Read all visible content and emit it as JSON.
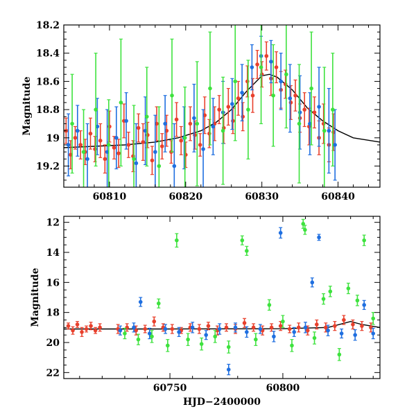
{
  "chart_data": [
    {
      "type": "scatter",
      "title": "",
      "xlabel": "",
      "ylabel": "Magnitude",
      "xlim": [
        60804,
        60845.5
      ],
      "ylim": [
        19.35,
        18.2
      ],
      "y_inverted": true,
      "grid": false,
      "legend": "none",
      "xticks": [
        60810,
        60820,
        60830,
        60840
      ],
      "yticks": [
        18.2,
        18.4,
        18.6,
        18.8,
        19,
        19.2
      ],
      "ytick_labels": [
        "18.2",
        "18.4",
        "18.6",
        "18.8",
        "19",
        "19.2"
      ],
      "model_curve": {
        "color": "#000000",
        "x": [
          60804,
          60808,
          60812,
          60816,
          60819,
          60822,
          60824,
          60826,
          60828,
          60830,
          60831,
          60832,
          60834,
          60836,
          60838,
          60840,
          60842,
          60845.5
        ],
        "y": [
          19.07,
          19.06,
          19.05,
          19.03,
          19.0,
          18.95,
          18.89,
          18.8,
          18.67,
          18.56,
          18.55,
          18.57,
          18.66,
          18.79,
          18.88,
          18.95,
          19.0,
          19.03
        ]
      },
      "series": [
        {
          "color": "#e8402c",
          "x": [
            60804.3,
            60804.9,
            60805.5,
            60806.2,
            60806.8,
            60807.5,
            60808.1,
            60808.8,
            60809.4,
            60810.0,
            60810.6,
            60811.2,
            60811.9,
            60812.5,
            60813.1,
            60813.8,
            60814.4,
            60815.0,
            60815.6,
            60816.2,
            60816.9,
            60817.5,
            60818.1,
            60818.8,
            60819.4,
            60820.0,
            60820.6,
            60821.2,
            60821.9,
            60822.5,
            60823.1,
            60823.8,
            60824.4,
            60825.0,
            60825.6,
            60826.2,
            60826.9,
            60827.5,
            60828.1,
            60828.8,
            60829.4,
            60830.0,
            60830.6,
            60831.2,
            60831.9,
            60832.5,
            60833.1,
            60833.8,
            60834.4,
            60835.0,
            60835.6,
            60836.2,
            60836.9,
            60837.5,
            60838.1,
            60838.8,
            60839.4
          ],
          "y": [
            18.95,
            19.12,
            19.0,
            19.05,
            19.1,
            18.97,
            19.08,
            19.02,
            19.15,
            18.92,
            19.07,
            19.11,
            18.88,
            19.05,
            19.13,
            18.93,
            19.03,
            18.98,
            19.16,
            18.9,
            19.06,
            18.95,
            19.1,
            18.87,
            19.02,
            19.12,
            18.9,
            18.98,
            19.05,
            18.84,
            18.97,
            18.9,
            18.8,
            18.93,
            18.78,
            18.88,
            18.72,
            18.85,
            18.6,
            18.7,
            18.48,
            18.55,
            18.42,
            18.58,
            18.5,
            18.66,
            18.62,
            18.75,
            18.7,
            18.86,
            18.8,
            18.92,
            18.82,
            19.0,
            18.9,
            19.05,
            18.96
          ],
          "err": [
            0.09,
            0.1,
            0.08,
            0.1,
            0.09,
            0.11,
            0.09,
            0.12,
            0.1,
            0.11,
            0.08,
            0.1,
            0.12,
            0.09,
            0.11,
            0.1,
            0.13,
            0.09,
            0.1,
            0.12,
            0.09,
            0.11,
            0.08,
            0.12,
            0.1,
            0.09,
            0.12,
            0.1,
            0.08,
            0.13,
            0.1,
            0.12,
            0.1,
            0.11,
            0.13,
            0.09,
            0.12,
            0.1,
            0.11,
            0.12,
            0.1,
            0.09,
            0.1,
            0.12,
            0.11,
            0.13,
            0.1,
            0.12,
            0.11,
            0.1,
            0.12,
            0.13,
            0.11,
            0.12,
            0.14,
            0.12,
            0.13
          ]
        },
        {
          "color": "#1f6fe0",
          "x": [
            60804.6,
            60805.8,
            60807.1,
            60808.4,
            60809.7,
            60810.9,
            60812.2,
            60813.5,
            60814.7,
            60816.0,
            60817.3,
            60818.5,
            60819.8,
            60821.1,
            60822.3,
            60823.6,
            60824.9,
            60826.1,
            60827.4,
            60828.7,
            60829.9,
            60831.2,
            60832.5,
            60833.7,
            60835.0,
            60836.3,
            60837.5,
            60838.8,
            60839.6
          ],
          "y": [
            19.05,
            18.95,
            19.15,
            18.92,
            19.1,
            19.0,
            18.88,
            19.18,
            18.95,
            19.1,
            18.9,
            19.2,
            19.0,
            18.86,
            19.08,
            18.92,
            18.82,
            18.76,
            18.68,
            18.5,
            18.42,
            18.46,
            18.6,
            18.72,
            18.82,
            18.9,
            18.78,
            18.95,
            19.05
          ],
          "err": [
            0.22,
            0.18,
            0.25,
            0.2,
            0.3,
            0.22,
            0.2,
            0.28,
            0.24,
            0.26,
            0.2,
            0.3,
            0.22,
            0.24,
            0.28,
            0.2,
            0.22,
            0.18,
            0.2,
            0.16,
            0.14,
            0.15,
            0.2,
            0.24,
            0.26,
            0.22,
            0.28,
            0.3,
            0.25
          ]
        },
        {
          "color": "#3ee23e",
          "x": [
            60805.1,
            60806.6,
            60808.2,
            60809.9,
            60811.5,
            60813.2,
            60814.9,
            60816.5,
            60818.2,
            60819.9,
            60821.5,
            60823.2,
            60824.9,
            60826.5,
            60828.2,
            60829.9,
            60831.5,
            60833.2,
            60834.9,
            60836.5,
            60838.2,
            60839.3
          ],
          "y": [
            18.9,
            19.1,
            18.8,
            19.05,
            18.75,
            19.15,
            18.85,
            19.2,
            18.7,
            19.0,
            18.9,
            18.65,
            18.95,
            18.6,
            18.8,
            18.5,
            18.7,
            18.55,
            18.9,
            18.65,
            18.95,
            18.8
          ],
          "err": [
            0.35,
            0.3,
            0.4,
            0.32,
            0.45,
            0.38,
            0.35,
            0.42,
            0.4,
            0.36,
            0.44,
            0.4,
            0.38,
            0.42,
            0.35,
            0.4,
            0.36,
            0.38,
            0.42,
            0.4,
            0.45,
            0.4
          ]
        }
      ]
    },
    {
      "type": "scatter",
      "title": "",
      "xlabel": "HJD−2400000",
      "ylabel": "Magnitude",
      "xlim": [
        60703,
        60843
      ],
      "ylim": [
        22.4,
        11.6
      ],
      "y_inverted": true,
      "grid": false,
      "legend": "none",
      "xticks": [
        60750,
        60800
      ],
      "yticks": [
        12,
        14,
        16,
        18,
        20,
        22
      ],
      "model_curve": {
        "color": "#000000",
        "x": [
          60703,
          60750,
          60800,
          60820,
          60830,
          60835,
          60843
        ],
        "y": [
          19.1,
          19.1,
          19.08,
          19.0,
          18.6,
          18.8,
          19.0
        ]
      },
      "series": [
        {
          "color": "#e8402c",
          "x": [
            60705,
            60707,
            60709,
            60711,
            60713,
            60715,
            60717,
            60719,
            60727,
            60731,
            60735,
            60739,
            60743,
            60747,
            60751,
            60755,
            60759,
            60763,
            60767,
            60771,
            60775,
            60779,
            60783,
            60787,
            60791,
            60795,
            60799,
            60803,
            60807,
            60811,
            60815,
            60819,
            60823,
            60827,
            60831,
            60835,
            60839
          ],
          "y": [
            18.9,
            19.2,
            18.8,
            19.3,
            19.1,
            18.9,
            19.2,
            19.0,
            19.1,
            19.0,
            19.2,
            19.1,
            18.6,
            19.0,
            19.1,
            19.2,
            19.0,
            19.1,
            18.9,
            19.2,
            19.0,
            19.1,
            18.7,
            19.0,
            19.2,
            19.0,
            18.9,
            19.1,
            19.0,
            19.2,
            18.8,
            19.0,
            18.9,
            18.5,
            18.8,
            18.9,
            19.0
          ],
          "err": [
            0.2,
            0.25,
            0.2,
            0.3,
            0.2,
            0.25,
            0.2,
            0.25,
            0.3,
            0.25,
            0.3,
            0.25,
            0.3,
            0.25,
            0.3,
            0.2,
            0.25,
            0.3,
            0.25,
            0.3,
            0.25,
            0.3,
            0.3,
            0.25,
            0.3,
            0.25,
            0.3,
            0.25,
            0.3,
            0.3,
            0.3,
            0.3,
            0.3,
            0.3,
            0.3,
            0.3,
            0.3
          ]
        },
        {
          "color": "#1f6fe0",
          "x": [
            60728,
            60734,
            60737,
            60741,
            60748,
            60754,
            60760,
            60766,
            60772,
            60776,
            60779,
            60784,
            60790,
            60796,
            60799,
            60805,
            60810,
            60813,
            60816,
            60820,
            60826,
            60832,
            60836,
            60840
          ],
          "y": [
            19.2,
            19.0,
            17.3,
            19.4,
            19.1,
            19.3,
            19.0,
            19.5,
            19.1,
            21.8,
            19.0,
            19.3,
            19.1,
            19.6,
            12.7,
            19.3,
            19.0,
            16.0,
            13.0,
            19.2,
            19.4,
            19.5,
            17.5,
            19.4
          ],
          "err": [
            0.3,
            0.3,
            0.3,
            0.35,
            0.3,
            0.3,
            0.35,
            0.3,
            0.35,
            0.35,
            0.3,
            0.35,
            0.3,
            0.35,
            0.35,
            0.3,
            0.35,
            0.3,
            0.2,
            0.35,
            0.3,
            0.35,
            0.3,
            0.35
          ]
        },
        {
          "color": "#3ee23e",
          "x": [
            60730,
            60736,
            60742,
            60745,
            60749,
            60753,
            60758,
            60764,
            60770,
            60776,
            60782,
            60784,
            60788,
            60794,
            60800,
            60804,
            60809,
            60809.8,
            60814,
            60818,
            60821,
            60825,
            60829,
            60833,
            60836,
            60840
          ],
          "y": [
            19.4,
            19.8,
            19.6,
            17.4,
            20.2,
            13.2,
            19.8,
            20.1,
            19.6,
            20.3,
            13.2,
            13.9,
            19.8,
            17.5,
            18.6,
            20.2,
            12.1,
            12.5,
            19.7,
            17.1,
            16.6,
            20.8,
            16.4,
            17.2,
            13.2,
            18.4
          ],
          "err": [
            0.35,
            0.35,
            0.4,
            0.3,
            0.4,
            0.45,
            0.4,
            0.4,
            0.4,
            0.4,
            0.3,
            0.3,
            0.4,
            0.35,
            0.4,
            0.4,
            0.3,
            0.3,
            0.4,
            0.35,
            0.35,
            0.4,
            0.35,
            0.35,
            0.35,
            0.4
          ]
        }
      ]
    }
  ]
}
